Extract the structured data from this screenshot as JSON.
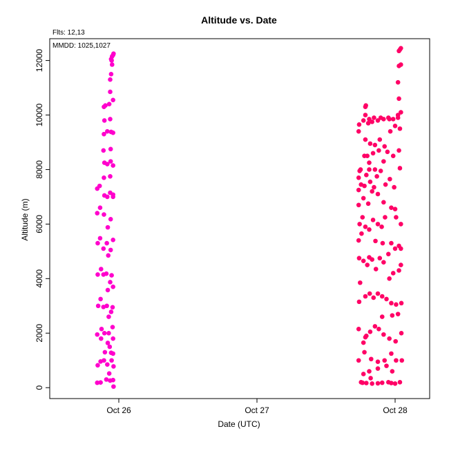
{
  "header": {
    "fits_label": "Flts: 12,13",
    "mmdd_label": "MMDD: 1025,1027"
  },
  "colors": {
    "series_oct26": "#ff00cc",
    "series_oct28": "#ff0066",
    "axis": "#000000",
    "background": "#ffffff"
  },
  "chart_data": {
    "type": "scatter",
    "title": "Altitude  vs. Date",
    "xlabel": "Date (UTC)",
    "ylabel": "Altitude (m)",
    "grid": false,
    "legend": "none",
    "x_ticks": [
      {
        "value": "2000-10-26",
        "label": "Oct 26"
      },
      {
        "value": "2000-10-27",
        "label": "Oct 27"
      },
      {
        "value": "2000-10-28",
        "label": "Oct 28"
      }
    ],
    "y_ticks": [
      0,
      2000,
      4000,
      6000,
      8000,
      10000,
      12000
    ],
    "xlim": [
      "2000-10-25T12:00",
      "2000-10-28T06:00"
    ],
    "ylim": [
      -400,
      12800
    ],
    "series": [
      {
        "color": "#ff00cc",
        "points": [
          [
            "2000-10-25T20:15",
            180
          ],
          [
            "2000-10-25T20:50",
            190
          ],
          [
            "2000-10-25T21:50",
            300
          ],
          [
            "2000-10-25T22:20",
            520
          ],
          [
            "2000-10-25T23:05",
            40
          ],
          [
            "2000-10-25T23:00",
            280
          ],
          [
            "2000-10-25T22:30",
            260
          ],
          [
            "2000-10-25T20:20",
            820
          ],
          [
            "2000-10-25T20:50",
            960
          ],
          [
            "2000-10-25T21:25",
            1000
          ],
          [
            "2000-10-25T22:00",
            850
          ],
          [
            "2000-10-25T23:05",
            780
          ],
          [
            "2000-10-25T22:45",
            1000
          ],
          [
            "2000-10-25T21:35",
            1300
          ],
          [
            "2000-10-25T22:05",
            1640
          ],
          [
            "2000-10-25T22:25",
            1500
          ],
          [
            "2000-10-25T22:40",
            1280
          ],
          [
            "2000-10-25T23:00",
            1250
          ],
          [
            "2000-10-25T23:00",
            1800
          ],
          [
            "2000-10-25T20:15",
            1950
          ],
          [
            "2000-10-25T20:55",
            1800
          ],
          [
            "2000-10-25T21:30",
            2000
          ],
          [
            "2000-10-25T22:15",
            2000
          ],
          [
            "2000-10-25T22:55",
            2220
          ],
          [
            "2000-10-25T21:00",
            2150
          ],
          [
            "2000-10-25T22:15",
            2600
          ],
          [
            "2000-10-25T22:40",
            2780
          ],
          [
            "2000-10-25T21:20",
            2960
          ],
          [
            "2000-10-25T21:55",
            3000
          ],
          [
            "2000-10-25T20:25",
            3000
          ],
          [
            "2000-10-25T20:50",
            3250
          ],
          [
            "2000-10-25T22:55",
            2950
          ],
          [
            "2000-10-25T22:05",
            3580
          ],
          [
            "2000-10-25T22:30",
            3870
          ],
          [
            "2000-10-25T23:00",
            3700
          ],
          [
            "2000-10-25T20:20",
            4150
          ],
          [
            "2000-10-25T20:55",
            4350
          ],
          [
            "2000-10-25T21:20",
            4150
          ],
          [
            "2000-10-25T21:50",
            4180
          ],
          [
            "2000-10-25T22:45",
            4120
          ],
          [
            "2000-10-25T22:10",
            4850
          ],
          [
            "2000-10-25T22:35",
            5050
          ],
          [
            "2000-10-25T21:20",
            5100
          ],
          [
            "2000-10-25T20:20",
            5300
          ],
          [
            "2000-10-25T20:45",
            5480
          ],
          [
            "2000-10-25T21:55",
            5300
          ],
          [
            "2000-10-25T23:00",
            5420
          ],
          [
            "2000-10-25T22:05",
            5880
          ],
          [
            "2000-10-25T22:35",
            6180
          ],
          [
            "2000-10-25T21:25",
            6350
          ],
          [
            "2000-10-25T20:15",
            6400
          ],
          [
            "2000-10-25T20:45",
            6600
          ],
          [
            "2000-10-25T21:30",
            7050
          ],
          [
            "2000-10-25T22:00",
            7000
          ],
          [
            "2000-10-25T22:30",
            7150
          ],
          [
            "2000-10-25T23:00",
            7000
          ],
          [
            "2000-10-25T23:00",
            7080
          ],
          [
            "2000-10-25T20:15",
            7300
          ],
          [
            "2000-10-25T20:40",
            7400
          ],
          [
            "2000-10-25T21:25",
            7700
          ],
          [
            "2000-10-25T22:30",
            7750
          ],
          [
            "2000-10-25T21:30",
            8250
          ],
          [
            "2000-10-25T22:00",
            8200
          ],
          [
            "2000-10-25T22:35",
            8300
          ],
          [
            "2000-10-25T23:00",
            8150
          ],
          [
            "2000-10-25T21:20",
            8700
          ],
          [
            "2000-10-25T22:35",
            8750
          ],
          [
            "2000-10-25T21:25",
            9300
          ],
          [
            "2000-10-25T22:00",
            9400
          ],
          [
            "2000-10-25T22:40",
            9380
          ],
          [
            "2000-10-25T23:00",
            9350
          ],
          [
            "2000-10-25T21:30",
            9800
          ],
          [
            "2000-10-25T22:30",
            9850
          ],
          [
            "2000-10-25T21:25",
            10300
          ],
          [
            "2000-10-25T21:40",
            10350
          ],
          [
            "2000-10-25T22:20",
            10400
          ],
          [
            "2000-10-25T23:00",
            10550
          ],
          [
            "2000-10-25T22:30",
            10850
          ],
          [
            "2000-10-25T22:30",
            11300
          ],
          [
            "2000-10-25T22:40",
            11500
          ],
          [
            "2000-10-25T22:50",
            11850
          ],
          [
            "2000-10-25T22:45",
            12000
          ],
          [
            "2000-10-25T22:40",
            12050
          ],
          [
            "2000-10-25T22:50",
            12150
          ],
          [
            "2000-10-25T23:00",
            12200
          ],
          [
            "2000-10-25T23:05",
            12250
          ]
        ]
      },
      {
        "color": "#ff0066",
        "points": [
          [
            "2000-10-27T18:20",
            180
          ],
          [
            "2000-10-27T19:00",
            170
          ],
          [
            "2000-10-27T20:00",
            150
          ],
          [
            "2000-10-27T21:00",
            160
          ],
          [
            "2000-10-27T21:45",
            180
          ],
          [
            "2000-10-27T22:50",
            200
          ],
          [
            "2000-10-28T00:00",
            150
          ],
          [
            "2000-10-28T00:50",
            200
          ],
          [
            "2000-10-27T18:05",
            200
          ],
          [
            "2000-10-27T23:20",
            170
          ],
          [
            "2000-10-27T18:30",
            500
          ],
          [
            "2000-10-27T19:30",
            600
          ],
          [
            "2000-10-27T21:00",
            700
          ],
          [
            "2000-10-27T22:30",
            800
          ],
          [
            "2000-10-27T23:30",
            600
          ],
          [
            "2000-10-27T19:45",
            350
          ],
          [
            "2000-10-27T17:40",
            1000
          ],
          [
            "2000-10-27T18:40",
            1300
          ],
          [
            "2000-10-27T19:50",
            1050
          ],
          [
            "2000-10-27T21:00",
            950
          ],
          [
            "2000-10-27T22:10",
            1000
          ],
          [
            "2000-10-27T23:20",
            1250
          ],
          [
            "2000-10-28T00:10",
            1000
          ],
          [
            "2000-10-28T01:10",
            1000
          ],
          [
            "2000-10-27T18:30",
            1650
          ],
          [
            "2000-10-27T19:00",
            1900
          ],
          [
            "2000-10-27T19:40",
            2050
          ],
          [
            "2000-10-27T20:30",
            2250
          ],
          [
            "2000-10-27T21:10",
            2150
          ],
          [
            "2000-10-27T22:00",
            1950
          ],
          [
            "2000-10-27T23:00",
            1800
          ],
          [
            "2000-10-28T00:05",
            1700
          ],
          [
            "2000-10-28T01:05",
            2000
          ],
          [
            "2000-10-27T18:50",
            1850
          ],
          [
            "2000-10-27T17:40",
            2150
          ],
          [
            "2000-10-27T21:45",
            2600
          ],
          [
            "2000-10-27T23:30",
            2650
          ],
          [
            "2000-10-28T00:30",
            2700
          ],
          [
            "2000-10-27T17:45",
            3150
          ],
          [
            "2000-10-27T18:50",
            3350
          ],
          [
            "2000-10-27T19:35",
            3450
          ],
          [
            "2000-10-27T20:15",
            3300
          ],
          [
            "2000-10-27T21:00",
            3450
          ],
          [
            "2000-10-27T21:45",
            3350
          ],
          [
            "2000-10-27T22:30",
            3250
          ],
          [
            "2000-10-27T23:20",
            3100
          ],
          [
            "2000-10-28T00:10",
            3050
          ],
          [
            "2000-10-28T01:05",
            3100
          ],
          [
            "2000-10-27T17:55",
            3850
          ],
          [
            "2000-10-27T23:00",
            4000
          ],
          [
            "2000-10-27T23:40",
            4200
          ],
          [
            "2000-10-28T00:40",
            4300
          ],
          [
            "2000-10-28T01:00",
            4500
          ],
          [
            "2000-10-27T17:45",
            4750
          ],
          [
            "2000-10-27T18:30",
            4650
          ],
          [
            "2000-10-27T19:10",
            4500
          ],
          [
            "2000-10-27T19:30",
            4780
          ],
          [
            "2000-10-27T20:00",
            4700
          ],
          [
            "2000-10-27T20:40",
            4350
          ],
          [
            "2000-10-27T21:20",
            4750
          ],
          [
            "2000-10-27T22:00",
            4600
          ],
          [
            "2000-10-27T22:50",
            4900
          ],
          [
            "2000-10-28T00:00",
            5100
          ],
          [
            "2000-10-28T01:00",
            5100
          ],
          [
            "2000-10-27T17:40",
            5400
          ],
          [
            "2000-10-27T18:10",
            5650
          ],
          [
            "2000-10-27T20:35",
            5380
          ],
          [
            "2000-10-27T23:20",
            5300
          ],
          [
            "2000-10-28T00:40",
            5200
          ],
          [
            "2000-10-27T21:50",
            5300
          ],
          [
            "2000-10-27T17:50",
            6000
          ],
          [
            "2000-10-27T18:20",
            6250
          ],
          [
            "2000-10-27T18:50",
            5900
          ],
          [
            "2000-10-27T19:30",
            5800
          ],
          [
            "2000-10-27T20:10",
            6150
          ],
          [
            "2000-10-27T21:00",
            6000
          ],
          [
            "2000-10-27T21:40",
            5900
          ],
          [
            "2000-10-27T22:15",
            6250
          ],
          [
            "2000-10-28T00:10",
            6250
          ],
          [
            "2000-10-28T01:00",
            6000
          ],
          [
            "2000-10-27T17:40",
            6700
          ],
          [
            "2000-10-27T18:30",
            6950
          ],
          [
            "2000-10-27T19:20",
            6750
          ],
          [
            "2000-10-27T20:00",
            7200
          ],
          [
            "2000-10-27T21:00",
            7100
          ],
          [
            "2000-10-27T22:00",
            6800
          ],
          [
            "2000-10-27T23:20",
            6600
          ],
          [
            "2000-10-28T00:00",
            6550
          ],
          [
            "2000-10-27T17:40",
            7250
          ],
          [
            "2000-10-27T18:05",
            7450
          ],
          [
            "2000-10-27T18:40",
            7400
          ],
          [
            "2000-10-27T19:00",
            7800
          ],
          [
            "2000-10-27T19:40",
            7550
          ],
          [
            "2000-10-27T20:20",
            7350
          ],
          [
            "2000-10-27T20:50",
            7750
          ],
          [
            "2000-10-27T21:30",
            7950
          ],
          [
            "2000-10-27T22:20",
            7450
          ],
          [
            "2000-10-27T23:05",
            7650
          ],
          [
            "2000-10-27T23:50",
            7350
          ],
          [
            "2000-10-28T00:50",
            8050
          ],
          [
            "2000-10-27T17:40",
            7700
          ],
          [
            "2000-10-27T17:50",
            7950
          ],
          [
            "2000-10-27T18:00",
            8000
          ],
          [
            "2000-10-27T19:30",
            8000
          ],
          [
            "2000-10-27T20:30",
            8000
          ],
          [
            "2000-10-27T18:40",
            8500
          ],
          [
            "2000-10-27T19:10",
            8500
          ],
          [
            "2000-10-27T19:30",
            8250
          ],
          [
            "2000-10-27T20:10",
            8600
          ],
          [
            "2000-10-27T21:10",
            8700
          ],
          [
            "2000-10-27T22:00",
            8300
          ],
          [
            "2000-10-27T22:40",
            8650
          ],
          [
            "2000-10-27T23:40",
            8500
          ],
          [
            "2000-10-28T00:40",
            8700
          ],
          [
            "2000-10-27T18:50",
            9100
          ],
          [
            "2000-10-27T19:40",
            8950
          ],
          [
            "2000-10-27T20:30",
            8900
          ],
          [
            "2000-10-27T21:20",
            9100
          ],
          [
            "2000-10-27T22:10",
            8850
          ],
          [
            "2000-10-27T23:10",
            9400
          ],
          [
            "2000-10-28T00:00",
            9600
          ],
          [
            "2000-10-28T00:50",
            9500
          ],
          [
            "2000-10-27T17:45",
            9650
          ],
          [
            "2000-10-27T18:30",
            9800
          ],
          [
            "2000-10-27T19:20",
            9700
          ],
          [
            "2000-10-27T20:00",
            9750
          ],
          [
            "2000-10-27T21:00",
            9800
          ],
          [
            "2000-10-27T21:30",
            9900
          ],
          [
            "2000-10-27T22:00",
            9850
          ],
          [
            "2000-10-27T22:50",
            9900
          ],
          [
            "2000-10-27T23:40",
            9850
          ],
          [
            "2000-10-28T00:30",
            9900
          ],
          [
            "2000-10-27T23:00",
            9850
          ],
          [
            "2000-10-27T17:40",
            9400
          ],
          [
            "2000-10-27T18:50",
            10000
          ],
          [
            "2000-10-27T19:30",
            9850
          ],
          [
            "2000-10-27T20:20",
            9900
          ],
          [
            "2000-10-28T00:30",
            10000
          ],
          [
            "2000-10-28T01:00",
            10100
          ],
          [
            "2000-10-27T18:50",
            10300
          ],
          [
            "2000-10-27T18:55",
            10350
          ],
          [
            "2000-10-28T00:40",
            10600
          ],
          [
            "2000-10-28T00:30",
            11200
          ],
          [
            "2000-10-28T00:40",
            11800
          ],
          [
            "2000-10-28T01:00",
            11850
          ],
          [
            "2000-10-28T00:40",
            12350
          ],
          [
            "2000-10-28T00:50",
            12400
          ],
          [
            "2000-10-28T01:00",
            12450
          ]
        ]
      }
    ]
  }
}
